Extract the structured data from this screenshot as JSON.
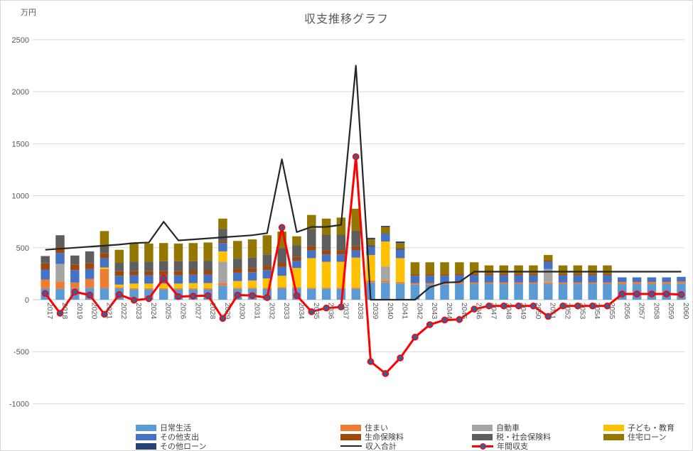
{
  "title": "収支推移グラフ",
  "y_axis": {
    "unit_label": "万円",
    "min": -1000,
    "max": 2500,
    "tick_interval": 500
  },
  "chart_data": {
    "type": "bar",
    "subtype": "stacked-bars-with-line-overlays",
    "title": "収支推移グラフ",
    "ylabel": "万円",
    "ylim": [
      -1000,
      2500
    ],
    "ytick_interval": 500,
    "grid": true,
    "legend_position": "bottom",
    "categories": [
      "2017",
      "2018",
      "2019",
      "2020",
      "2021",
      "2022",
      "2023",
      "2024",
      "2025",
      "2026",
      "2027",
      "2028",
      "2029",
      "2030",
      "2031",
      "2032",
      "2033",
      "2034",
      "2035",
      "2036",
      "2037",
      "2038",
      "2039",
      "2040",
      "2041",
      "2042",
      "2043",
      "2044",
      "2045",
      "2046",
      "2047",
      "2048",
      "2049",
      "2050",
      "2051",
      "2052",
      "2053",
      "2054",
      "2055",
      "2056",
      "2057",
      "2058",
      "2059",
      "2060"
    ],
    "stack_series": [
      {
        "name": "日常生活",
        "key": "daily-living",
        "color": "#5B9BD5",
        "values": [
          110,
          105,
          110,
          115,
          110,
          110,
          100,
          100,
          100,
          100,
          100,
          100,
          135,
          105,
          105,
          105,
          110,
          110,
          105,
          105,
          105,
          105,
          165,
          165,
          155,
          145,
          145,
          145,
          150,
          150,
          150,
          150,
          150,
          150,
          150,
          150,
          150,
          150,
          150,
          150,
          150,
          150,
          150,
          155
        ]
      },
      {
        "name": "住まい",
        "key": "housing",
        "color": "#ED7D31",
        "values": [
          85,
          70,
          55,
          85,
          185,
          10,
          10,
          10,
          10,
          10,
          10,
          10,
          25,
          10,
          10,
          10,
          10,
          10,
          10,
          10,
          10,
          10,
          20,
          20,
          15,
          15,
          15,
          15,
          15,
          15,
          15,
          15,
          15,
          15,
          15,
          15,
          15,
          15,
          15,
          20,
          20,
          20,
          20,
          20
        ]
      },
      {
        "name": "自動車",
        "key": "car",
        "color": "#A5A5A5",
        "values": [
          0,
          170,
          0,
          0,
          0,
          0,
          0,
          0,
          0,
          0,
          0,
          0,
          205,
          0,
          0,
          0,
          0,
          0,
          0,
          0,
          0,
          0,
          0,
          135,
          0,
          0,
          0,
          0,
          0,
          0,
          0,
          0,
          0,
          0,
          130,
          0,
          0,
          0,
          0,
          0,
          0,
          0,
          0,
          0
        ]
      },
      {
        "name": "子ども・教育",
        "key": "children-education",
        "color": "#FFC000",
        "values": [
          0,
          0,
          0,
          0,
          15,
          25,
          45,
          45,
          45,
          45,
          50,
          50,
          100,
          65,
          70,
          90,
          110,
          185,
          285,
          250,
          250,
          290,
          245,
          240,
          230,
          0,
          0,
          0,
          0,
          0,
          0,
          0,
          0,
          0,
          0,
          0,
          0,
          0,
          0,
          0,
          0,
          0,
          0,
          0
        ]
      },
      {
        "name": "その他支出",
        "key": "other-expenses",
        "color": "#4472C4",
        "values": [
          95,
          105,
          120,
          95,
          90,
          85,
          80,
          80,
          80,
          80,
          80,
          80,
          80,
          80,
          80,
          80,
          85,
          70,
          75,
          70,
          70,
          70,
          75,
          75,
          75,
          70,
          70,
          70,
          70,
          70,
          70,
          70,
          70,
          70,
          70,
          70,
          70,
          70,
          70,
          45,
          45,
          45,
          45,
          45
        ]
      },
      {
        "name": "生命保険料",
        "key": "life-insurance",
        "color": "#9E480E",
        "values": [
          60,
          55,
          55,
          55,
          45,
          45,
          40,
          40,
          40,
          40,
          40,
          40,
          20,
          40,
          40,
          40,
          40,
          40,
          40,
          40,
          40,
          40,
          0,
          0,
          0,
          15,
          15,
          15,
          15,
          15,
          15,
          15,
          15,
          15,
          15,
          15,
          15,
          15,
          15,
          0,
          0,
          0,
          0,
          0
        ]
      },
      {
        "name": "税・社会保険料",
        "key": "tax-social-insurance",
        "color": "#5E5E5E",
        "values": [
          70,
          115,
          85,
          115,
          75,
          80,
          90,
          90,
          95,
          95,
          90,
          95,
          115,
          95,
          100,
          110,
          140,
          110,
          165,
          150,
          150,
          150,
          25,
          0,
          20,
          0,
          0,
          0,
          0,
          0,
          0,
          0,
          0,
          0,
          0,
          0,
          0,
          0,
          0,
          0,
          0,
          0,
          0,
          0
        ]
      },
      {
        "name": "住宅ローン",
        "key": "housing-loan",
        "color": "#937700",
        "values": [
          0,
          0,
          0,
          0,
          140,
          125,
          185,
          175,
          175,
          170,
          175,
          175,
          100,
          170,
          175,
          185,
          160,
          85,
          135,
          155,
          165,
          210,
          50,
          65,
          50,
          115,
          115,
          115,
          110,
          110,
          80,
          80,
          80,
          80,
          50,
          80,
          80,
          80,
          80,
          0,
          0,
          0,
          0,
          0
        ]
      },
      {
        "name": "その他ローン",
        "key": "other-loan",
        "color": "#264478",
        "values": [
          0,
          0,
          0,
          0,
          0,
          0,
          0,
          0,
          0,
          0,
          0,
          0,
          0,
          0,
          0,
          0,
          0,
          0,
          0,
          0,
          0,
          0,
          15,
          10,
          15,
          0,
          0,
          0,
          0,
          0,
          0,
          0,
          0,
          0,
          0,
          0,
          0,
          0,
          0,
          0,
          0,
          0,
          0,
          0
        ]
      }
    ],
    "line_series": [
      {
        "name": "収入合計",
        "key": "income-total",
        "color": "#262626",
        "style": "line",
        "values": [
          480,
          490,
          500,
          510,
          520,
          530,
          545,
          550,
          750,
          570,
          580,
          590,
          600,
          610,
          620,
          640,
          1350,
          650,
          700,
          700,
          720,
          2250,
          0,
          0,
          0,
          0,
          120,
          165,
          170,
          270,
          270,
          270,
          270,
          270,
          270,
          270,
          270,
          270,
          270,
          270,
          270,
          270,
          270,
          270
        ]
      },
      {
        "name": "年間収支",
        "key": "annual-balance",
        "color": "#FF0000",
        "style": "line-marker",
        "marker_fill": "#3F5B94",
        "values": [
          60,
          -130,
          75,
          45,
          -140,
          50,
          -5,
          10,
          205,
          30,
          35,
          40,
          -180,
          45,
          40,
          20,
          695,
          40,
          -115,
          -80,
          -70,
          1375,
          -595,
          -710,
          -560,
          -360,
          -240,
          -195,
          -190,
          -90,
          -60,
          -60,
          -60,
          -60,
          -160,
          -60,
          -60,
          -60,
          -60,
          55,
          55,
          55,
          55,
          50
        ]
      }
    ]
  }
}
